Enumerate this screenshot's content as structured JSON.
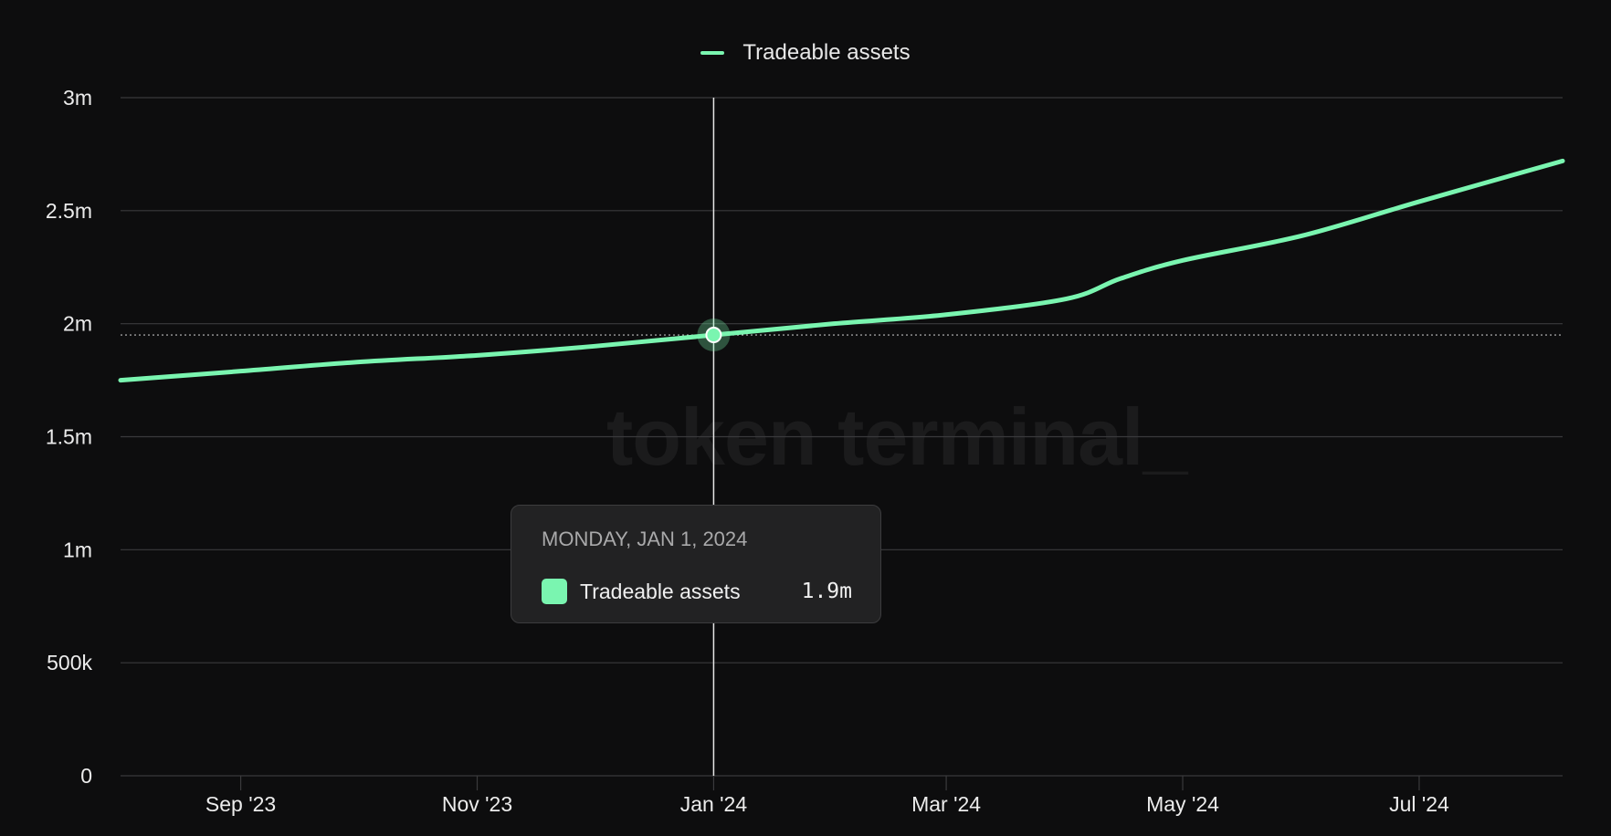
{
  "chart_data": {
    "type": "line",
    "title": "",
    "xlabel": "",
    "ylabel": "",
    "x": [
      "2023-08-01",
      "2023-09-01",
      "2023-10-01",
      "2023-11-01",
      "2023-12-01",
      "2024-01-01",
      "2024-02-01",
      "2024-03-01",
      "2024-04-01",
      "2024-04-15",
      "2024-05-01",
      "2024-06-01",
      "2024-07-01",
      "2024-08-07"
    ],
    "series": [
      {
        "name": "Tradeable assets",
        "color": "#7af5b0",
        "values": [
          1750000,
          1790000,
          1830000,
          1860000,
          1900000,
          1950000,
          2000000,
          2040000,
          2110000,
          2200000,
          2280000,
          2390000,
          2540000,
          2720000
        ]
      }
    ],
    "ylim": [
      0,
      3000000
    ],
    "yticks": [
      {
        "value": 0,
        "label": "0"
      },
      {
        "value": 500000,
        "label": "500k"
      },
      {
        "value": 1000000,
        "label": "1m"
      },
      {
        "value": 1500000,
        "label": "1.5m"
      },
      {
        "value": 2000000,
        "label": "2m"
      },
      {
        "value": 2500000,
        "label": "2.5m"
      },
      {
        "value": 3000000,
        "label": "3m"
      }
    ],
    "xlim": [
      "2023-08-01",
      "2024-08-07"
    ],
    "xticks": [
      {
        "date": "2023-09-01",
        "label": "Sep '23"
      },
      {
        "date": "2023-11-01",
        "label": "Nov '23"
      },
      {
        "date": "2024-01-01",
        "label": "Jan '24"
      },
      {
        "date": "2024-03-01",
        "label": "Mar '24"
      },
      {
        "date": "2024-05-01",
        "label": "May '24"
      },
      {
        "date": "2024-07-01",
        "label": "Jul '24"
      }
    ],
    "grid": true,
    "legend_position": "top-center",
    "hover": {
      "date": "2024-01-01",
      "value": 1950000,
      "tooltip_date": "MONDAY, JAN 1, 2024",
      "tooltip_label": "Tradeable assets",
      "tooltip_value": "1.9m"
    }
  },
  "legend": {
    "label": "Tradeable assets"
  },
  "watermark": "token terminal_",
  "colors": {
    "background": "#0d0d0e",
    "series": "#7af5b0",
    "grid": "#3a3a3c",
    "text": "#ececec"
  }
}
